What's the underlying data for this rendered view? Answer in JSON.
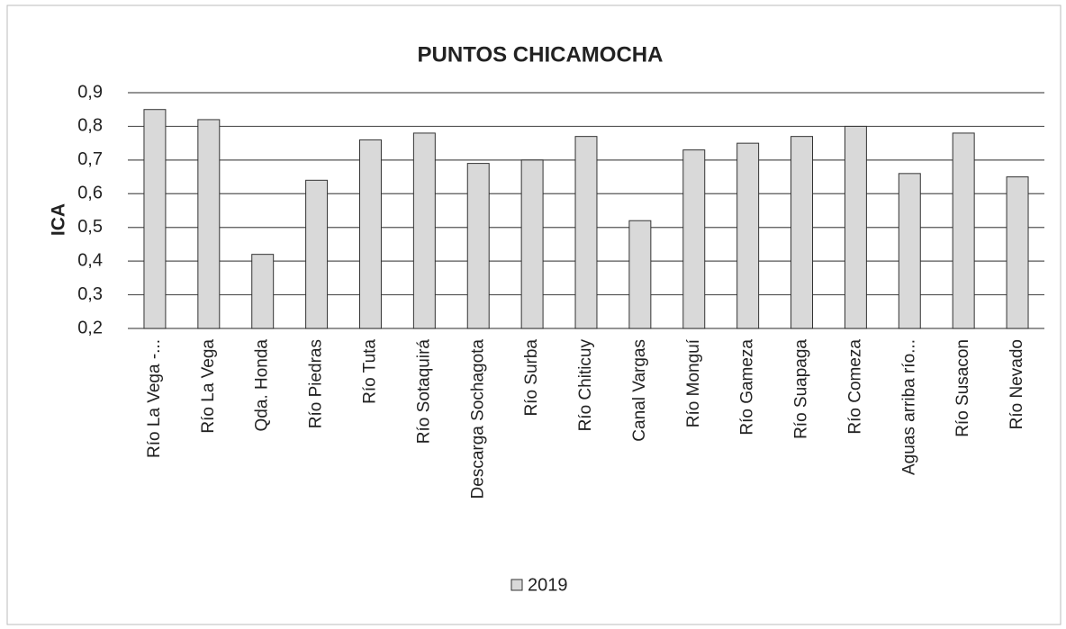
{
  "chart_data": {
    "type": "bar",
    "title": "PUNTOS CHICAMOCHA",
    "y_label": "ICA",
    "categories": [
      "Río La Vega -...",
      "Río La Vega",
      "Qda. Honda",
      "Río Piedras",
      "Río Tuta",
      "Río Sotaquirá",
      "Descarga Sochagota",
      "Río Surba",
      "Río Chiticuy",
      "Canal Vargas",
      "Río Monguí",
      "Río Gameza",
      "Río Suapaga",
      "Río Comeza",
      "Aguas arriba río...",
      "Río Susacon",
      "Río Nevado"
    ],
    "series": [
      {
        "name": "2019",
        "color": "#d9d9d9",
        "values": [
          0.85,
          0.82,
          0.42,
          0.64,
          0.76,
          0.78,
          0.69,
          0.7,
          0.77,
          0.52,
          0.73,
          0.75,
          0.77,
          0.8,
          0.66,
          0.78,
          0.65
        ]
      }
    ],
    "ylim": [
      0.2,
      0.9
    ],
    "yticks": [
      {
        "value": 0.2,
        "label": "0,2"
      },
      {
        "value": 0.3,
        "label": "0,3"
      },
      {
        "value": 0.4,
        "label": "0,4"
      },
      {
        "value": 0.5,
        "label": "0,5"
      },
      {
        "value": 0.6,
        "label": "0,6"
      },
      {
        "value": 0.7,
        "label": "0,7"
      },
      {
        "value": 0.8,
        "label": "0,8"
      },
      {
        "value": 0.9,
        "label": "0,9"
      }
    ],
    "grid": true,
    "legend": "bottom"
  }
}
